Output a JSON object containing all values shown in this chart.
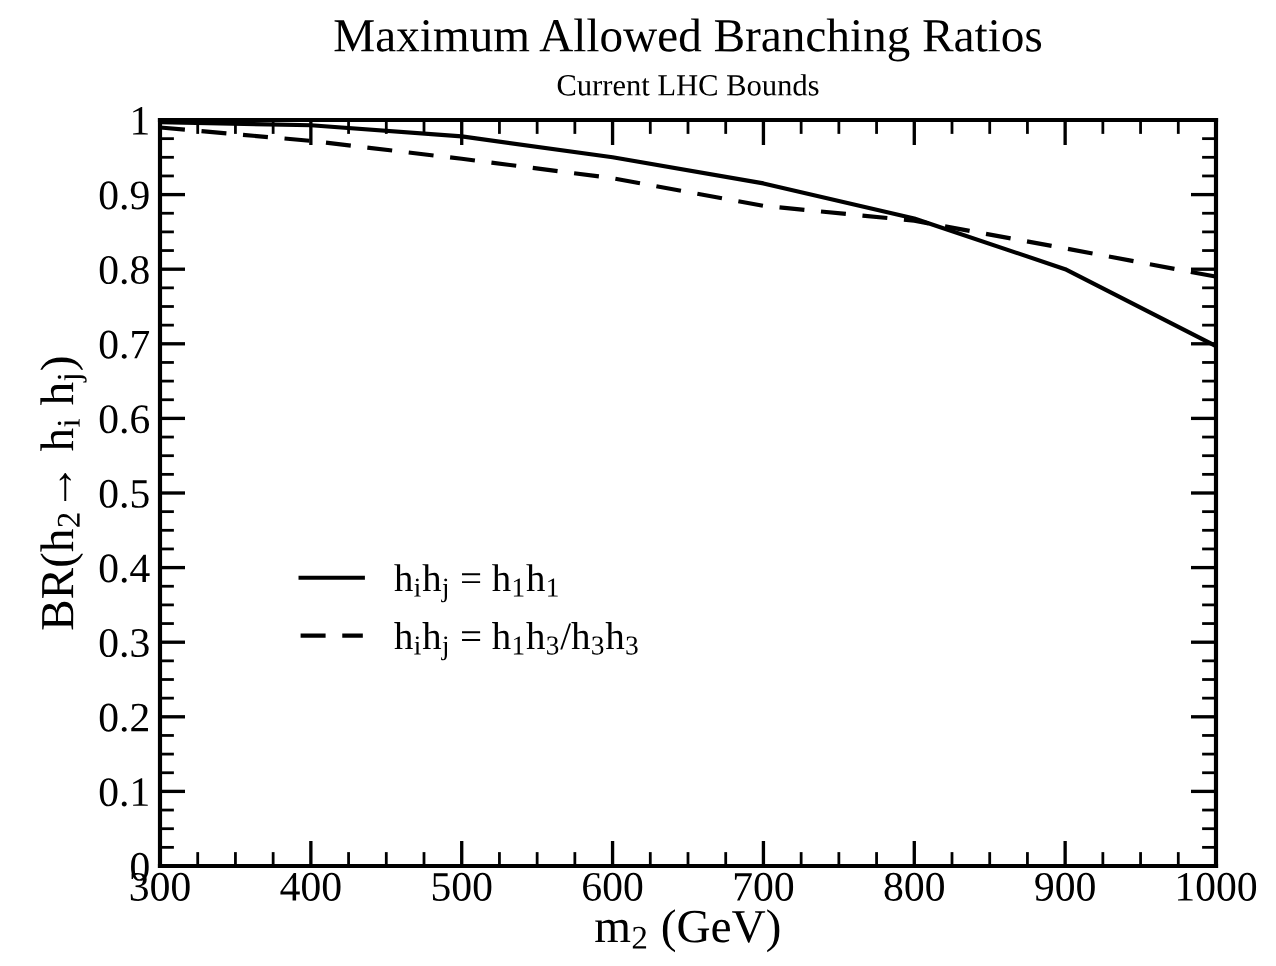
{
  "chart_data": {
    "type": "line",
    "title": "Maximum Allowed Branching Ratios",
    "subtitle": "Current LHC Bounds",
    "xlabel": "m$_{2}$ (GeV)",
    "ylabel": "BR(h$_{2}$→ h$_{i}$ h$_{j}$)",
    "x": [
      300,
      400,
      500,
      600,
      700,
      800,
      900,
      1000
    ],
    "series": [
      {
        "name": "h$_{i}$h$_{j}$ = h$_{1}$h$_{1}$",
        "color": "#000000",
        "line_style": "solid",
        "values": [
          0.997,
          0.993,
          0.978,
          0.95,
          0.915,
          0.868,
          0.8,
          0.697
        ]
      },
      {
        "name": "h$_{i}$h$_{j}$ = h$_{1}$h$_{3}$/h$_{3}$h$_{3}$",
        "color": "#000000",
        "line_style": "dashed",
        "values": [
          0.99,
          0.972,
          0.948,
          0.922,
          0.885,
          0.865,
          0.828,
          0.79
        ]
      }
    ],
    "xlim": [
      300,
      1000
    ],
    "xticks": [
      300,
      400,
      500,
      600,
      700,
      800,
      900,
      1000
    ],
    "ylim": [
      0,
      1
    ],
    "yticks": [
      0,
      0.1,
      0.2,
      0.3,
      0.4,
      0.5,
      0.6,
      0.7,
      0.8,
      0.9,
      1
    ],
    "grid": false,
    "legend": "left",
    "marker": "none"
  }
}
